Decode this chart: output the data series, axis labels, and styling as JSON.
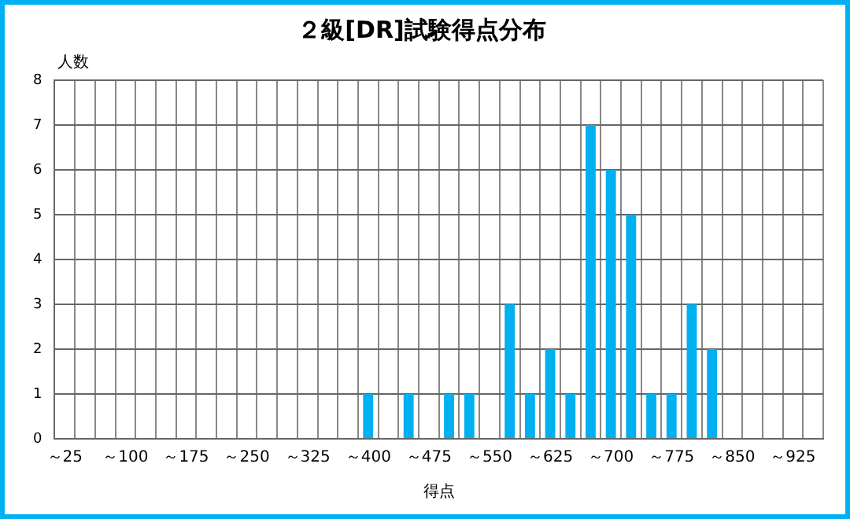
{
  "chart_data": {
    "type": "bar",
    "title": "２級[DR]試験得点分布",
    "xlabel": "得点",
    "ylabel": "人数",
    "categories": [
      "～25",
      null,
      null,
      "～100",
      null,
      null,
      "～175",
      null,
      null,
      "～250",
      null,
      null,
      "～325",
      null,
      null,
      "～400",
      null,
      null,
      "～475",
      null,
      null,
      "～550",
      null,
      null,
      "～625",
      null,
      null,
      "～700",
      null,
      null,
      "～775",
      null,
      null,
      "～850",
      null,
      null,
      "～925",
      null
    ],
    "values": [
      0,
      0,
      0,
      0,
      0,
      0,
      0,
      0,
      0,
      0,
      0,
      0,
      0,
      0,
      0,
      1,
      0,
      1,
      0,
      1,
      1,
      0,
      3,
      1,
      2,
      1,
      7,
      6,
      5,
      1,
      1,
      3,
      2,
      0,
      0,
      0,
      0,
      0
    ],
    "color": "#00b0f0",
    "ylim": [
      0,
      8
    ],
    "yticks": [
      0,
      1,
      2,
      3,
      4,
      5,
      6,
      7,
      8
    ],
    "grid": true,
    "legend": false
  }
}
